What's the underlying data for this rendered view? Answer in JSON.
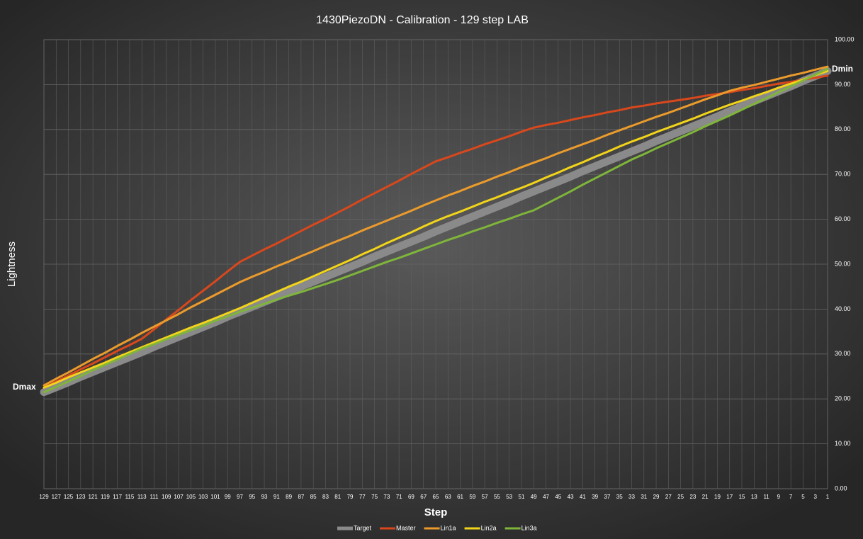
{
  "chart_data": {
    "type": "line",
    "title": "1430PiezoDN - Calibration - 129 step LAB",
    "x_label": "Step",
    "y_label": "Lightness",
    "annotations": [
      "Dmax",
      "Dmin"
    ],
    "grid": true,
    "legend": "bottom",
    "categories": [
      129,
      127,
      125,
      123,
      121,
      119,
      117,
      115,
      113,
      111,
      109,
      107,
      105,
      103,
      101,
      99,
      97,
      95,
      93,
      91,
      89,
      87,
      85,
      83,
      81,
      79,
      77,
      75,
      73,
      71,
      69,
      67,
      65,
      63,
      61,
      59,
      57,
      55,
      53,
      51,
      49,
      47,
      45,
      43,
      41,
      39,
      37,
      35,
      33,
      31,
      29,
      27,
      25,
      23,
      21,
      19,
      17,
      15,
      13,
      11,
      9,
      7,
      5,
      3,
      1
    ],
    "ylim": [
      0,
      100
    ],
    "yticks": [
      {
        "value": 0,
        "label": "0.00"
      },
      {
        "value": 10,
        "label": "10.00"
      },
      {
        "value": 20,
        "label": "20.00"
      },
      {
        "value": 30,
        "label": "30.00"
      },
      {
        "value": 40,
        "label": "40.00"
      },
      {
        "value": 50,
        "label": "50.00"
      },
      {
        "value": 60,
        "label": "60.00"
      },
      {
        "value": 70,
        "label": "70.00"
      },
      {
        "value": 80,
        "label": "80.00"
      },
      {
        "value": 90,
        "label": "90.00"
      },
      {
        "value": 100,
        "label": "100.00"
      }
    ],
    "series": [
      {
        "name": "Target",
        "color": "#8a8a8a",
        "values": [
          21.5,
          22.6,
          23.7,
          24.9,
          26.0,
          27.1,
          28.2,
          29.3,
          30.4,
          31.6,
          32.7,
          33.8,
          34.9,
          36.0,
          37.1,
          38.3,
          39.4,
          40.5,
          41.6,
          42.7,
          43.8,
          45.0,
          46.1,
          47.2,
          48.3,
          49.4,
          50.5,
          51.7,
          52.8,
          53.9,
          55.0,
          56.1,
          57.3,
          58.4,
          59.5,
          60.6,
          61.7,
          62.8,
          63.9,
          65.1,
          66.2,
          67.3,
          68.4,
          69.5,
          70.7,
          71.8,
          72.9,
          74.0,
          75.1,
          76.2,
          77.4,
          78.5,
          79.6,
          80.7,
          81.8,
          82.9,
          84.1,
          85.2,
          86.3,
          87.4,
          88.5,
          89.6,
          90.8,
          91.9,
          93.0
        ]
      },
      {
        "name": "Master",
        "color": "#d9481c",
        "values": [
          22.5,
          23.9,
          25.2,
          26.6,
          27.9,
          29.3,
          30.7,
          32.0,
          33.4,
          35.5,
          37.7,
          39.8,
          42.0,
          44.1,
          46.2,
          48.4,
          50.5,
          51.9,
          53.3,
          54.6,
          56.0,
          57.4,
          58.8,
          60.1,
          61.5,
          62.9,
          64.4,
          65.8,
          67.2,
          68.6,
          70.1,
          71.5,
          72.9,
          73.8,
          74.8,
          75.7,
          76.7,
          77.6,
          78.5,
          79.5,
          80.4,
          81.0,
          81.5,
          82.1,
          82.7,
          83.2,
          83.8,
          84.3,
          84.9,
          85.3,
          85.8,
          86.2,
          86.6,
          87.0,
          87.5,
          87.9,
          88.3,
          88.8,
          89.2,
          89.7,
          90.2,
          90.6,
          91.1,
          91.5,
          92.0
        ]
      },
      {
        "name": "Lin1a",
        "color": "#eb9b2c",
        "values": [
          23.0,
          24.5,
          25.9,
          27.4,
          28.9,
          30.3,
          31.8,
          33.2,
          34.7,
          36.1,
          37.5,
          38.9,
          40.4,
          41.8,
          43.2,
          44.6,
          46.0,
          47.2,
          48.3,
          49.5,
          50.6,
          51.8,
          52.9,
          54.1,
          55.2,
          56.3,
          57.5,
          58.6,
          59.7,
          60.8,
          61.9,
          63.1,
          64.2,
          65.3,
          66.3,
          67.4,
          68.4,
          69.5,
          70.5,
          71.6,
          72.6,
          73.6,
          74.7,
          75.7,
          76.7,
          77.7,
          78.8,
          79.8,
          80.8,
          81.8,
          82.8,
          83.7,
          84.7,
          85.7,
          86.7,
          87.6,
          88.6,
          89.3,
          89.9,
          90.6,
          91.3,
          92.0,
          92.6,
          93.3,
          94.0
        ]
      },
      {
        "name": "Lin2a",
        "color": "#f2d41a",
        "values": [
          22.5,
          23.6,
          24.8,
          25.9,
          27.0,
          28.1,
          29.3,
          30.4,
          31.5,
          32.6,
          33.7,
          34.8,
          35.9,
          36.9,
          38.0,
          39.1,
          40.2,
          41.4,
          42.6,
          43.8,
          45.0,
          46.1,
          47.3,
          48.5,
          49.7,
          50.9,
          52.2,
          53.4,
          54.7,
          55.9,
          57.1,
          58.4,
          59.6,
          60.7,
          61.7,
          62.8,
          63.9,
          64.9,
          66.0,
          67.0,
          68.1,
          69.3,
          70.4,
          71.6,
          72.7,
          73.9,
          75.0,
          76.2,
          77.3,
          78.3,
          79.4,
          80.4,
          81.4,
          82.4,
          83.5,
          84.5,
          85.5,
          86.4,
          87.4,
          88.3,
          89.3,
          90.2,
          91.1,
          92.1,
          93.0
        ]
      },
      {
        "name": "Lin3a",
        "color": "#7fb53a",
        "values": [
          21.5,
          22.7,
          23.9,
          25.1,
          26.4,
          27.6,
          28.8,
          30.0,
          31.2,
          32.2,
          33.3,
          34.3,
          35.3,
          36.3,
          37.4,
          38.4,
          39.4,
          40.3,
          41.2,
          42.1,
          43.0,
          43.8,
          44.7,
          45.6,
          46.5,
          47.5,
          48.5,
          49.5,
          50.5,
          51.4,
          52.4,
          53.4,
          54.4,
          55.4,
          56.3,
          57.3,
          58.2,
          59.2,
          60.1,
          61.1,
          62.0,
          63.4,
          64.8,
          66.2,
          67.7,
          69.1,
          70.5,
          71.9,
          73.3,
          74.5,
          75.8,
          77.0,
          78.2,
          79.4,
          80.7,
          81.9,
          83.1,
          84.4,
          85.7,
          87.0,
          88.3,
          89.6,
          90.9,
          92.2,
          93.5
        ]
      }
    ]
  }
}
